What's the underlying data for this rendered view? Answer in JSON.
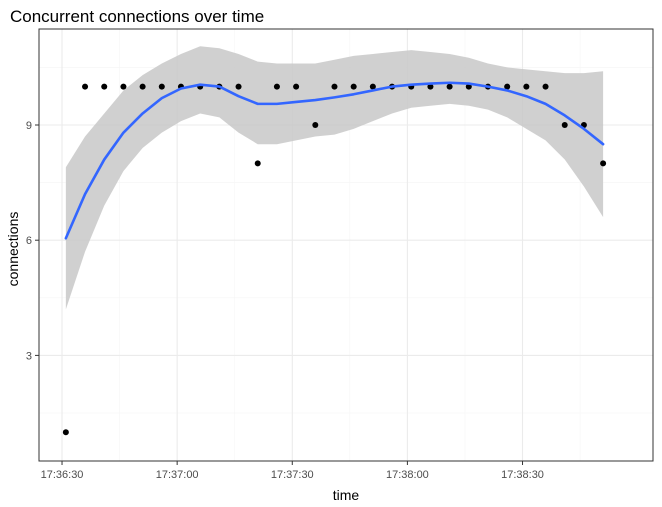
{
  "chart_data": {
    "type": "scatter",
    "title": "Concurrent connections over time",
    "xlabel": "time",
    "ylabel": "connections",
    "x_ticks": [
      "17:36:30",
      "17:37:00",
      "17:37:30",
      "17:38:00",
      "17:38:30"
    ],
    "x_range": [
      "17:36:24",
      "17:39:04"
    ],
    "y_ticks": [
      3,
      6,
      9
    ],
    "ylim": [
      0.25,
      11.5
    ],
    "grid": true,
    "legend": "none",
    "colors": {
      "points": "#000000",
      "smooth_line": "#3366ff",
      "confidence_band": "#c8c8c8",
      "grid_major": "#ebebeb",
      "grid_minor": "#f5f5f5",
      "panel_border": "#333333"
    },
    "points": {
      "x": [
        "17:36:31",
        "17:36:36",
        "17:36:41",
        "17:36:46",
        "17:36:51",
        "17:36:56",
        "17:37:01",
        "17:37:06",
        "17:37:11",
        "17:37:16",
        "17:37:21",
        "17:37:26",
        "17:37:31",
        "17:37:36",
        "17:37:41",
        "17:37:46",
        "17:37:51",
        "17:37:56",
        "17:38:01",
        "17:38:06",
        "17:38:11",
        "17:38:16",
        "17:38:21",
        "17:38:26",
        "17:38:31",
        "17:38:36",
        "17:38:41",
        "17:38:46",
        "17:38:51"
      ],
      "y": [
        1,
        10,
        10,
        10,
        10,
        10,
        10,
        10,
        10,
        10,
        8,
        10,
        10,
        9,
        10,
        10,
        10,
        10,
        10,
        10,
        10,
        10,
        10,
        10,
        10,
        10,
        9,
        9,
        8
      ]
    },
    "smooth": {
      "x": [
        "17:36:31",
        "17:36:36",
        "17:36:41",
        "17:36:46",
        "17:36:51",
        "17:36:56",
        "17:37:01",
        "17:37:06",
        "17:37:11",
        "17:37:16",
        "17:37:21",
        "17:37:26",
        "17:37:31",
        "17:37:36",
        "17:37:41",
        "17:37:46",
        "17:37:51",
        "17:37:56",
        "17:38:01",
        "17:38:06",
        "17:38:11",
        "17:38:16",
        "17:38:21",
        "17:38:26",
        "17:38:31",
        "17:38:36",
        "17:38:41",
        "17:38:46",
        "17:38:51"
      ],
      "fit": [
        6.05,
        7.2,
        8.1,
        8.8,
        9.3,
        9.7,
        9.95,
        10.05,
        10.0,
        9.75,
        9.55,
        9.55,
        9.6,
        9.65,
        9.72,
        9.8,
        9.9,
        10.0,
        10.05,
        10.08,
        10.1,
        10.08,
        10.0,
        9.9,
        9.75,
        9.55,
        9.25,
        8.9,
        8.5
      ],
      "lower": [
        4.2,
        5.7,
        6.9,
        7.8,
        8.4,
        8.8,
        9.1,
        9.3,
        9.2,
        8.8,
        8.5,
        8.5,
        8.6,
        8.7,
        8.75,
        8.9,
        9.1,
        9.3,
        9.45,
        9.5,
        9.55,
        9.5,
        9.4,
        9.2,
        8.9,
        8.6,
        8.1,
        7.4,
        6.6
      ],
      "upper": [
        7.9,
        8.7,
        9.3,
        9.9,
        10.3,
        10.6,
        10.85,
        11.05,
        11.0,
        10.85,
        10.65,
        10.6,
        10.6,
        10.6,
        10.7,
        10.8,
        10.85,
        10.9,
        10.95,
        10.9,
        10.85,
        10.75,
        10.6,
        10.5,
        10.45,
        10.4,
        10.35,
        10.35,
        10.4
      ]
    }
  }
}
